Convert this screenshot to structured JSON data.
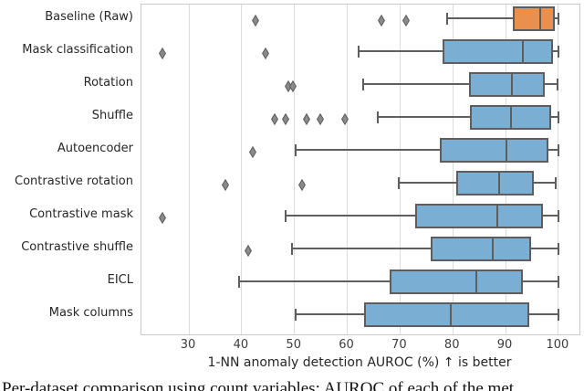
{
  "chart_data": {
    "type": "boxplot",
    "orientation": "horizontal",
    "xlabel": "1-NN anomaly detection AUROC (%) ↑ is better",
    "x_ticks": [
      30,
      40,
      50,
      60,
      70,
      80,
      90,
      100
    ],
    "xlim": [
      21,
      104
    ],
    "grid": "vertical gridlines at each x tick, light gray",
    "legend": "none",
    "categories": [
      "Baseline (Raw)",
      "Mask classification",
      "Rotation",
      "Shuffle",
      "Autoencoder",
      "Contrastive rotation",
      "Contrastive mask",
      "Contrastive shuffle",
      "EICL",
      "Mask columns"
    ],
    "series": [
      {
        "label": "Baseline (Raw)",
        "whisker_low": 79.0,
        "q1": 91.4,
        "median": 96.5,
        "q3": 99.4,
        "whisker_high": 100.0,
        "outliers": [
          42.7,
          66.5,
          71.1
        ],
        "highlight": true
      },
      {
        "label": "Mask classification",
        "whisker_low": 62.1,
        "q1": 78.1,
        "median": 93.2,
        "q3": 99.0,
        "whisker_high": 100.0,
        "outliers": [
          24.9,
          44.5
        ],
        "highlight": false
      },
      {
        "label": "Rotation",
        "whisker_low": 63.1,
        "q1": 83.1,
        "median": 91.2,
        "q3": 97.5,
        "whisker_high": 99.9,
        "outliers": [
          48.8,
          49.7
        ],
        "highlight": false
      },
      {
        "label": "Shuffle",
        "whisker_low": 65.8,
        "q1": 83.3,
        "median": 91.0,
        "q3": 98.7,
        "whisker_high": 100.0,
        "outliers": [
          46.2,
          48.4,
          52.3,
          54.9,
          59.5
        ],
        "highlight": false
      },
      {
        "label": "Autoencoder",
        "whisker_low": 50.3,
        "q1": 77.6,
        "median": 90.1,
        "q3": 98.2,
        "whisker_high": 100.0,
        "outliers": [
          42.1
        ],
        "highlight": false
      },
      {
        "label": "Contrastive rotation",
        "whisker_low": 69.8,
        "q1": 80.6,
        "median": 88.8,
        "q3": 95.3,
        "whisker_high": 99.5,
        "outliers": [
          36.9,
          51.4
        ],
        "highlight": false
      },
      {
        "label": "Contrastive mask",
        "whisker_low": 48.3,
        "q1": 72.9,
        "median": 88.5,
        "q3": 97.0,
        "whisker_high": 100.0,
        "outliers": [
          24.9
        ],
        "highlight": false
      },
      {
        "label": "Contrastive shuffle",
        "whisker_low": 49.6,
        "q1": 75.8,
        "median": 87.6,
        "q3": 94.8,
        "whisker_high": 100.0,
        "outliers": [
          41.3
        ],
        "highlight": false
      },
      {
        "label": "EICL",
        "whisker_low": 39.5,
        "q1": 68.0,
        "median": 84.5,
        "q3": 93.3,
        "whisker_high": 100.0,
        "outliers": [],
        "highlight": false
      },
      {
        "label": "Mask columns",
        "whisker_low": 50.2,
        "q1": 63.2,
        "median": 79.6,
        "q3": 94.5,
        "whisker_high": 100.0,
        "outliers": [],
        "highlight": false
      }
    ],
    "colors": {
      "highlight_box": "#e9904e",
      "default_box": "#7aaed2",
      "box_edge": "#5e5e5e",
      "whisker": "#5e5e5e",
      "median": "#5e5e5e",
      "outlier_fill": "#8a8a8a",
      "outlier_edge": "#5a5a5a",
      "gridline": "#dcdcdc",
      "plot_border": "#c9c9c9",
      "text": "#262626"
    }
  },
  "caption": {
    "fragment": "Per-dataset comparison using count variables: AUROC of each of the met"
  }
}
